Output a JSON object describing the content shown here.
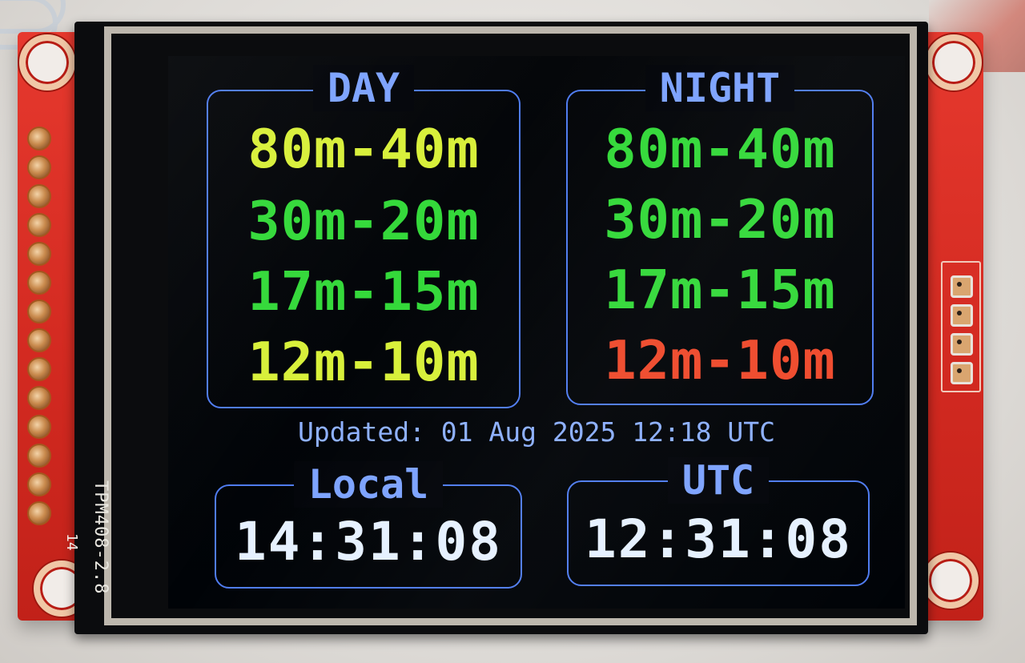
{
  "day": {
    "title": "DAY",
    "bands": [
      {
        "label": "80m-40m",
        "color": "#d8f03a"
      },
      {
        "label": "30m-20m",
        "color": "#34d93a"
      },
      {
        "label": "17m-15m",
        "color": "#34d93a"
      },
      {
        "label": "12m-10m",
        "color": "#d8f03a"
      }
    ]
  },
  "night": {
    "title": "NIGHT",
    "bands": [
      {
        "label": "80m-40m",
        "color": "#34d93a"
      },
      {
        "label": "30m-20m",
        "color": "#34d93a"
      },
      {
        "label": "17m-15m",
        "color": "#34d93a"
      },
      {
        "label": "12m-10m",
        "color": "#ef4a2c"
      }
    ]
  },
  "updated": "Updated: 01 Aug 2025 12:18 UTC",
  "local": {
    "title": "Local",
    "time": "14:31:08"
  },
  "utc": {
    "title": "UTC",
    "time": "12:31:08"
  },
  "board": {
    "model": "TPM408-2.8",
    "pin_number": "14"
  },
  "colors": {
    "border": "#4f7cf0",
    "title": "#7da3ff",
    "pcb": "#d32a21"
  }
}
